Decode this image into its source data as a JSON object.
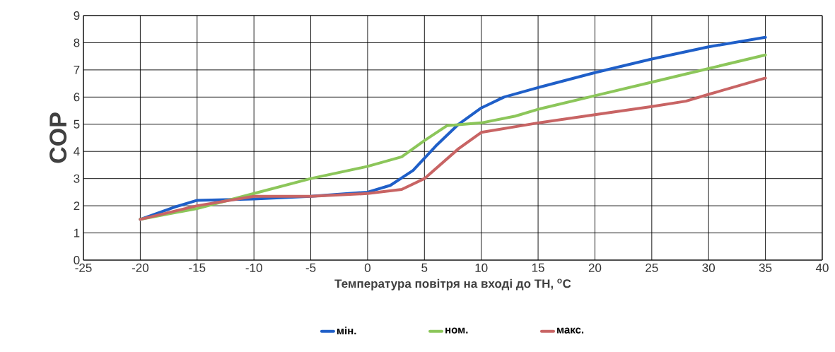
{
  "chart_data": {
    "type": "line",
    "xlabel": "Температура повітря на вході до ТН, $^{o}$C",
    "ylabel": "COP",
    "xlim": [
      -25,
      40
    ],
    "ylim": [
      0,
      9
    ],
    "xticks": [
      -25,
      -20,
      -15,
      -10,
      -5,
      0,
      5,
      10,
      15,
      20,
      25,
      30,
      35,
      40
    ],
    "yticks": [
      0,
      1,
      2,
      3,
      4,
      5,
      6,
      7,
      8,
      9
    ],
    "grid": true,
    "legend": "bottom",
    "line_style": "solid",
    "marker": "none",
    "series": [
      {
        "name": "мін.",
        "color": "#1f5fc8",
        "x": [
          -20,
          -17,
          -15,
          -10,
          -5,
          0,
          2,
          4,
          6,
          8,
          10,
          12,
          15,
          20,
          25,
          30,
          35
        ],
        "values": [
          1.5,
          1.95,
          2.2,
          2.25,
          2.35,
          2.5,
          2.75,
          3.3,
          4.2,
          5.0,
          5.6,
          6.0,
          6.35,
          6.9,
          7.4,
          7.85,
          8.2
        ]
      },
      {
        "name": "ном.",
        "color": "#8cc65a",
        "x": [
          -20,
          -15,
          -10,
          -5,
          0,
          3,
          5,
          7,
          10,
          13,
          15,
          20,
          25,
          30,
          35
        ],
        "values": [
          1.5,
          1.9,
          2.45,
          3.0,
          3.45,
          3.8,
          4.4,
          4.95,
          5.05,
          5.3,
          5.55,
          6.05,
          6.55,
          7.05,
          7.55
        ]
      },
      {
        "name": "макс.",
        "color": "#c86464",
        "x": [
          -20,
          -15,
          -10,
          -5,
          0,
          3,
          5,
          8,
          10,
          15,
          20,
          25,
          28,
          30,
          35
        ],
        "values": [
          1.5,
          2.0,
          2.35,
          2.35,
          2.45,
          2.6,
          3.0,
          4.1,
          4.7,
          5.05,
          5.35,
          5.65,
          5.85,
          6.1,
          6.7
        ]
      }
    ]
  }
}
